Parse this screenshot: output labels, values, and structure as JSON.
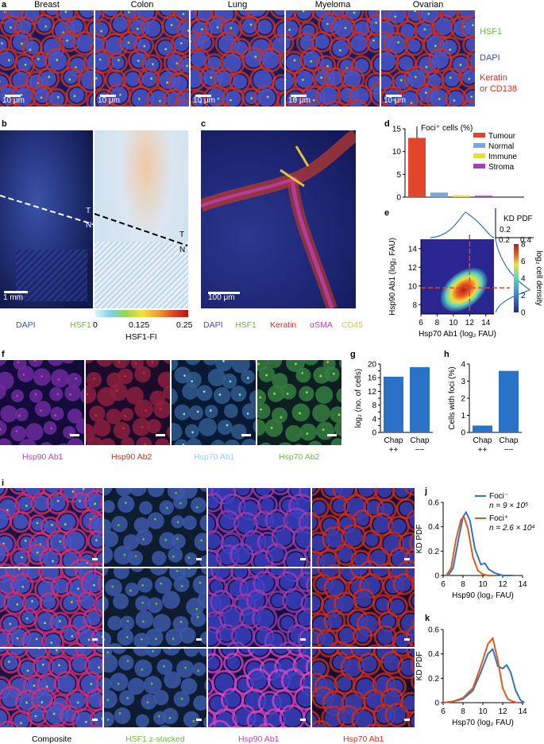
{
  "panel_letters": {
    "a": "a",
    "b": "b",
    "c": "c",
    "d": "d",
    "e": "e",
    "f": "f",
    "g": "g",
    "h": "h",
    "i": "i",
    "j": "j",
    "k": "k"
  },
  "colors": {
    "hsf1": "#6dbb3a",
    "dapi": "#3a4fc4",
    "keratin": "#d82a1c",
    "asma": "#c23fb2",
    "cd45": "#e3c23a",
    "hsp70ab1": "#8fd5e6",
    "hsp90ab2": "#d82a1c",
    "bar_blue": "#2a72c8",
    "tumour": "#e2452c",
    "normal": "#79a8d8",
    "immune": "#e9dc3a",
    "stroma": "#a33fb4",
    "curve_blue": "#3274c0",
    "curve_orange": "#e05a1c"
  },
  "panel_a": {
    "tissues": [
      "Breast",
      "Colon",
      "Lung",
      "Myeloma",
      "Ovarian"
    ],
    "scale": "10 μm",
    "legend": {
      "hsf1": "HSF1",
      "dapi": "DAPI",
      "keratin": "Keratin",
      "or_cd138": "or CD138"
    }
  },
  "panel_b": {
    "labels": {
      "t1": "T",
      "n1": "N",
      "t2": "T",
      "n2": "N"
    },
    "scale": "1 mm",
    "legend": {
      "dapi": "DAPI",
      "hsf1": "HSF1"
    },
    "colorbar": {
      "ticks": [
        "0",
        "0.125",
        "0.25"
      ],
      "label": "HSF1-FI"
    }
  },
  "panel_c": {
    "scale": "100 μm",
    "legend": {
      "dapi": "DAPI",
      "hsf1": "HSF1",
      "keratin": "Keratin",
      "asma": "αSMA",
      "cd45": "CD45"
    }
  },
  "panel_f": {
    "legend": {
      "hsp90ab1": "Hsp90 Ab1",
      "hsp90ab2": "Hsp90 Ab2",
      "hsp70ab1": "Hsp70 Ab1",
      "hsp70ab2": "Hsp70 Ab2"
    }
  },
  "panel_i": {
    "legend": {
      "composite": "Composite",
      "hsf1": "HSF1 z-stacked",
      "hsp90": "Hsp90 Ab1",
      "hsp70": "Hsp70 Ab1"
    }
  },
  "chart_data": [
    {
      "id": "d",
      "type": "bar",
      "title": "Foci⁺ cells (%)",
      "categories": [
        "Tumour",
        "Normal",
        "Immune",
        "Stroma"
      ],
      "values": [
        13.0,
        1.0,
        0.4,
        0.3
      ],
      "ylim": [
        0,
        15
      ],
      "yticks": [
        "0",
        "5",
        "10",
        "15"
      ],
      "legend": [
        "Tumour",
        "Normal",
        "Immune",
        "Stroma"
      ]
    },
    {
      "id": "e",
      "type": "heatmap",
      "xlabel": "Hsp70 Ab1 (log₂ FAU)",
      "ylabel": "Hsp90 Ab1 (log₂ FAU)",
      "xticks": [
        "6",
        "8",
        "10",
        "12",
        "14"
      ],
      "yticks": [
        "8",
        "10",
        "12",
        "14"
      ],
      "xlim": [
        6,
        15
      ],
      "ylim": [
        7,
        15
      ],
      "colorbar": {
        "label": "log₂ cell density",
        "ticks": [
          "0",
          "2",
          "4",
          "6",
          "8"
        ]
      },
      "marginal_label": "KD PDF",
      "marginal_ticks": [
        "0.2",
        "0.4"
      ],
      "threshold_x": 12,
      "threshold_y": 9.8
    },
    {
      "id": "g",
      "type": "bar",
      "ylabel": "log₂ (no. of cells)",
      "categories": [
        "Chap ++",
        "Chap −−"
      ],
      "cat_lines": [
        [
          "Chap",
          "++"
        ],
        [
          "Chap",
          "−−"
        ]
      ],
      "values": [
        16.3,
        19.1
      ],
      "ylim": [
        0,
        20
      ],
      "yticks": [
        "0",
        "2",
        "4",
        "6",
        "8",
        "10",
        "12",
        "14",
        "16",
        "18",
        "20"
      ]
    },
    {
      "id": "h",
      "type": "bar",
      "ylabel": "Cells with foci (%)",
      "categories": [
        "Chap ++",
        "Chap −−"
      ],
      "cat_lines": [
        [
          "Chap",
          "++"
        ],
        [
          "Chap",
          "−−"
        ]
      ],
      "values": [
        0.4,
        3.6
      ],
      "ylim": [
        0,
        4
      ],
      "yticks": [
        "0",
        "1",
        "2",
        "3",
        "4"
      ]
    },
    {
      "id": "j",
      "type": "line",
      "xlabel": "Hsp90 (log₂ FAU)",
      "ylabel": "KD PDF",
      "xlim": [
        6,
        14
      ],
      "ylim": [
        0,
        0.6
      ],
      "xticks": [
        "6",
        "8",
        "10",
        "12",
        "14"
      ],
      "yticks": [
        "0",
        "0.2",
        "0.4",
        "0.6"
      ],
      "series": [
        {
          "name": "Foci⁻",
          "n": "n = 9 × 10⁵",
          "x": [
            6.5,
            7.0,
            7.5,
            8.0,
            8.3,
            8.7,
            9.2,
            9.8,
            10.2,
            10.6,
            11.2,
            12.0,
            13.0
          ],
          "y": [
            0.0,
            0.06,
            0.28,
            0.48,
            0.52,
            0.45,
            0.22,
            0.09,
            0.1,
            0.05,
            0.02,
            0.0,
            0.0
          ]
        },
        {
          "name": "Foci⁺",
          "n": "n = 2.6 × 10⁴",
          "x": [
            6.3,
            6.8,
            7.3,
            7.8,
            8.1,
            8.5,
            9.0,
            9.5,
            10.0,
            10.5,
            11.0
          ],
          "y": [
            0.0,
            0.06,
            0.3,
            0.46,
            0.48,
            0.38,
            0.15,
            0.04,
            0.01,
            0.0,
            0.0
          ]
        }
      ]
    },
    {
      "id": "k",
      "type": "line",
      "xlabel": "Hsp70 (log₂ FAU)",
      "ylabel": "KD PDF",
      "xlim": [
        6,
        14
      ],
      "ylim": [
        0,
        0.6
      ],
      "xticks": [
        "6",
        "8",
        "10",
        "12",
        "14"
      ],
      "yticks": [
        "0",
        "0.2",
        "0.4",
        "0.6"
      ],
      "series": [
        {
          "name": "Foci⁻",
          "x": [
            6.0,
            7.0,
            8.0,
            9.0,
            9.8,
            10.5,
            11.0,
            11.5,
            12.0,
            12.4,
            12.8,
            13.3,
            13.8,
            14.2
          ],
          "y": [
            0.0,
            0.01,
            0.03,
            0.1,
            0.25,
            0.4,
            0.44,
            0.3,
            0.28,
            0.31,
            0.25,
            0.1,
            0.02,
            0.0
          ]
        },
        {
          "name": "Foci⁺",
          "x": [
            6.0,
            7.0,
            8.0,
            9.0,
            9.8,
            10.5,
            11.0,
            11.5,
            12.0,
            12.5,
            13.0,
            13.5
          ],
          "y": [
            0.0,
            0.01,
            0.04,
            0.12,
            0.3,
            0.48,
            0.53,
            0.35,
            0.12,
            0.03,
            0.01,
            0.0
          ]
        }
      ]
    }
  ]
}
